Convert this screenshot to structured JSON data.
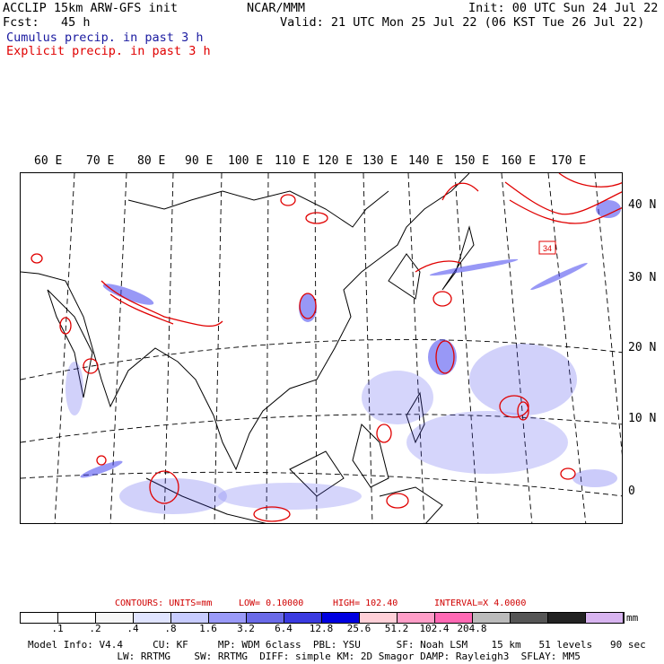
{
  "header": {
    "model": "ACCLIP 15km ARW-GFS init",
    "org": "NCAR/MMM",
    "init": "Init: 00 UTC Sun 24 Jul 22",
    "fcst": "Fcst:   45 h",
    "valid": "Valid: 21 UTC Mon 25 Jul 22 (06 KST Tue 26 Jul 22)",
    "legend_cumulus": "Cumulus precip. in past 3 h",
    "legend_explicit": "Explicit precip. in past 3 h"
  },
  "map": {
    "lon_labels": [
      "60 E",
      "70 E",
      "80 E",
      "90 E",
      "100 E",
      "110 E",
      "120 E",
      "130 E",
      "140 E",
      "150 E",
      "160 E",
      "170 E"
    ],
    "lat_labels": [
      "40 N",
      "30 N",
      "20 N",
      "10 N",
      "0"
    ],
    "marker_label": "34",
    "colors": {
      "cumulus": "#3333ee",
      "explicit": "#e00000",
      "coast": "#000000"
    }
  },
  "contours": {
    "units": "CONTOURS:  UNITS=mm",
    "low": "LOW= 0.10000",
    "high": "HIGH=  102.40",
    "interval": "INTERVAL=X  4.0000"
  },
  "colorbar": {
    "colors": [
      "#ffffff",
      "#ffffff",
      "#f6f6f6",
      "#e0e4ff",
      "#c8ccff",
      "#9a9af8",
      "#6a6ae8",
      "#3a3ae0",
      "#0000e0",
      "#ffd0d8",
      "#ff9ec8",
      "#ff69b4",
      "#bbbbbb",
      "#555555",
      "#222222",
      "#d8b4f0"
    ],
    "ticks": [
      ".1",
      ".2",
      ".4",
      ".8",
      "1.6",
      "3.2",
      "6.4",
      "12.8",
      "25.6",
      "51.2",
      "102.4",
      "204.8"
    ],
    "unit": "mm"
  },
  "footer": {
    "line1": "Model Info: V4.4     CU: KF     MP: WDM 6class  PBL: YSU      SF: Noah LSM    15 km   51 levels   90 sec",
    "line2": "               LW: RRTMG    SW: RRTMG  DIFF: simple KM: 2D Smagor DAMP: Rayleigh3  SFLAY: MM5"
  }
}
